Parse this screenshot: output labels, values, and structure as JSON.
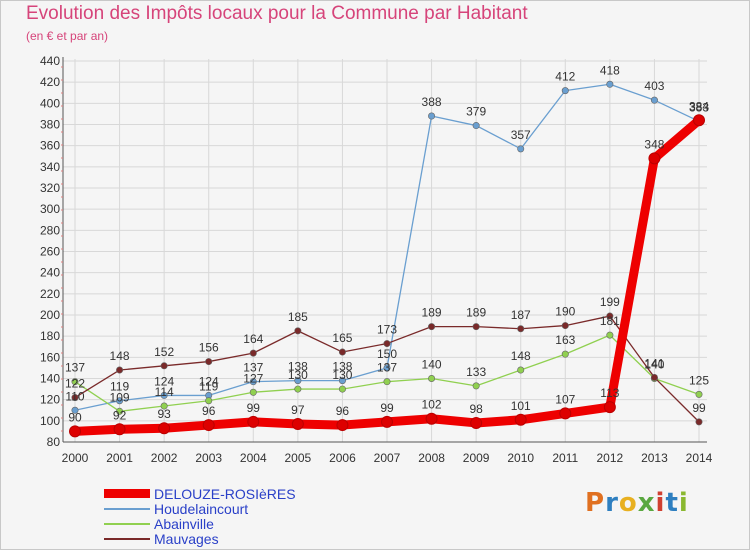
{
  "title": "Evolution des Impôts locaux pour la Commune par Habitant",
  "subtitle": "(en € et par an)",
  "logo": {
    "letters": [
      "P",
      "r",
      "o",
      "x",
      "i",
      "t",
      "i"
    ],
    "colors": [
      "#e07020",
      "#2e7fc0",
      "#e8b020",
      "#5aa840",
      "#d04030",
      "#2e7fc0",
      "#8ab830"
    ]
  },
  "chart_data": {
    "type": "line",
    "x": [
      2000,
      2001,
      2002,
      2003,
      2004,
      2005,
      2006,
      2007,
      2008,
      2009,
      2010,
      2011,
      2012,
      2013,
      2014
    ],
    "ylim": [
      80,
      440
    ],
    "yticks": [
      80,
      100,
      120,
      140,
      160,
      180,
      200,
      220,
      240,
      260,
      280,
      300,
      320,
      340,
      360,
      380,
      400,
      420,
      440
    ],
    "grid": true,
    "legend_position": "bottom-left",
    "series": [
      {
        "name": "DELOUZE-ROSIèRES",
        "color": "#ee0000",
        "emphasis": true,
        "values": [
          90,
          92,
          93,
          96,
          99,
          97,
          96,
          99,
          102,
          98,
          101,
          107,
          113,
          348,
          384
        ]
      },
      {
        "name": "Houdelaincourt",
        "color": "#6a9fd0",
        "values": [
          110,
          119,
          124,
          124,
          137,
          138,
          138,
          150,
          388,
          379,
          357,
          412,
          418,
          403,
          383
        ]
      },
      {
        "name": "Abainville",
        "color": "#90d050",
        "values": [
          137,
          109,
          114,
          119,
          127,
          130,
          130,
          137,
          140,
          133,
          148,
          163,
          181,
          140,
          125
        ]
      },
      {
        "name": "Mauvages",
        "color": "#7a2a2a",
        "values": [
          122,
          148,
          152,
          156,
          164,
          185,
          165,
          173,
          189,
          189,
          187,
          190,
          199,
          141,
          99
        ]
      }
    ]
  }
}
